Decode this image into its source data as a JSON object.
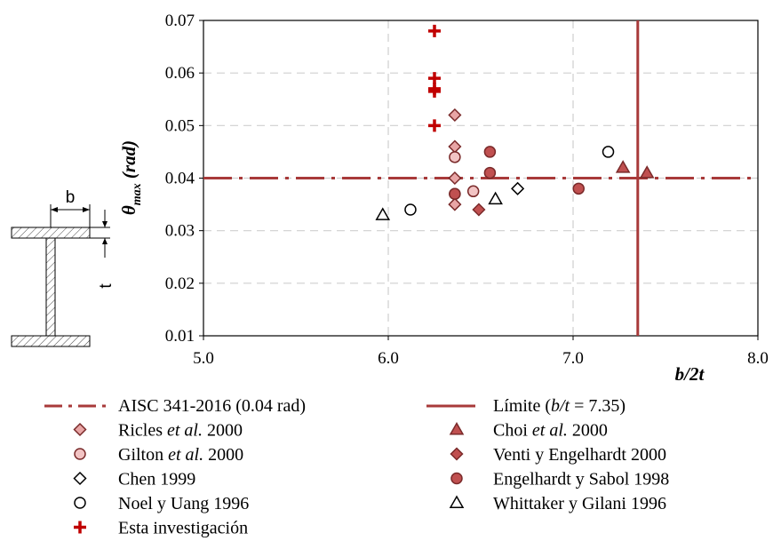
{
  "chart_data": {
    "type": "scatter",
    "xlabel": "b/2t",
    "ylabel_main": "θ",
    "ylabel_sub": "max",
    "ylabel_unit": " (rad)",
    "xlim": [
      5.0,
      8.0
    ],
    "ylim": [
      0.01,
      0.07
    ],
    "x_ticks": [
      "5.0",
      "6.0",
      "7.0",
      "8.0"
    ],
    "y_ticks": [
      "0.01",
      "0.02",
      "0.03",
      "0.04",
      "0.05",
      "0.06",
      "0.07"
    ],
    "x_tick_values": [
      5.0,
      6.0,
      7.0,
      8.0
    ],
    "y_tick_values": [
      0.01,
      0.02,
      0.03,
      0.04,
      0.05,
      0.06,
      0.07
    ],
    "grid": true,
    "reference_lines": [
      {
        "name": "AISC 341-2016 (0.04 rad)",
        "orientation": "horizontal",
        "value": 0.04,
        "style": "dash-dot",
        "color": "#a83a3a"
      },
      {
        "name": "Límite (b/t = 7.35)",
        "orientation": "vertical",
        "value": 7.35,
        "style": "solid",
        "color": "#a83a3a"
      }
    ],
    "series": [
      {
        "name": "Ricles et al. 2000",
        "marker": "diamond",
        "fill": "#e8a5a5",
        "stroke": "#7a2a2a",
        "points": [
          [
            6.36,
            0.052
          ],
          [
            6.36,
            0.046
          ],
          [
            6.36,
            0.04
          ],
          [
            6.36,
            0.035
          ]
        ]
      },
      {
        "name": "Gilton et al. 2000",
        "marker": "circle",
        "fill": "#f2c4c4",
        "stroke": "#7a2a2a",
        "points": [
          [
            6.36,
            0.044
          ],
          [
            6.36,
            0.037
          ],
          [
            6.46,
            0.0375
          ]
        ]
      },
      {
        "name": "Chen 1999",
        "marker": "diamond",
        "fill": "#ffffff",
        "stroke": "#000000",
        "points": [
          [
            6.7,
            0.038
          ]
        ]
      },
      {
        "name": "Noel y Uang 1996",
        "marker": "circle",
        "fill": "#ffffff",
        "stroke": "#000000",
        "points": [
          [
            6.12,
            0.034
          ],
          [
            7.19,
            0.045
          ]
        ]
      },
      {
        "name": "Esta investigación",
        "marker": "plus",
        "fill": "#c00000",
        "stroke": "#c00000",
        "points": [
          [
            6.25,
            0.068
          ],
          [
            6.25,
            0.059
          ],
          [
            6.25,
            0.057
          ],
          [
            6.25,
            0.0565
          ],
          [
            6.25,
            0.05
          ]
        ]
      },
      {
        "name": "Choi et al. 2000",
        "marker": "triangle",
        "fill": "#c05050",
        "stroke": "#7a2a2a",
        "points": [
          [
            7.27,
            0.042
          ],
          [
            7.4,
            0.041
          ]
        ]
      },
      {
        "name": "Venti y Engelhardt 2000",
        "marker": "diamond",
        "fill": "#c05050",
        "stroke": "#7a2a2a",
        "points": [
          [
            6.49,
            0.034
          ]
        ]
      },
      {
        "name": "Engelhardt y Sabol 1998",
        "marker": "circle",
        "fill": "#c05050",
        "stroke": "#7a2a2a",
        "points": [
          [
            6.55,
            0.045
          ],
          [
            6.55,
            0.041
          ],
          [
            6.36,
            0.037
          ],
          [
            7.03,
            0.038
          ]
        ]
      },
      {
        "name": "Whittaker y Gilani 1996",
        "marker": "triangle",
        "fill": "#ffffff",
        "stroke": "#000000",
        "points": [
          [
            5.97,
            0.033
          ],
          [
            6.58,
            0.036
          ]
        ]
      }
    ]
  },
  "legend": {
    "left": [
      {
        "key": "aisc",
        "label": "AISC 341-2016 (0.04 rad)",
        "marker": "dashdot",
        "fill": "#a83a3a",
        "stroke": "#a83a3a"
      },
      {
        "key": "ricles",
        "label_parts": [
          "Ricles ",
          "et al.",
          " 2000"
        ],
        "marker": "diamond",
        "fill": "#e8a5a5",
        "stroke": "#7a2a2a"
      },
      {
        "key": "gilton",
        "label_parts": [
          "Gilton ",
          "et al.",
          " 2000"
        ],
        "marker": "circle",
        "fill": "#f2c4c4",
        "stroke": "#7a2a2a"
      },
      {
        "key": "chen",
        "label": "Chen 1999",
        "marker": "diamond",
        "fill": "#ffffff",
        "stroke": "#000000"
      },
      {
        "key": "noel",
        "label": "Noel y Uang 1996",
        "marker": "circle",
        "fill": "#ffffff",
        "stroke": "#000000"
      },
      {
        "key": "esta",
        "label": "Esta investigación",
        "marker": "plus",
        "fill": "#c00000",
        "stroke": "#c00000"
      }
    ],
    "right": [
      {
        "key": "limite",
        "label_parts": [
          "Límite (",
          "b/t",
          " = 7.35)"
        ],
        "marker": "solidline",
        "fill": "#a83a3a",
        "stroke": "#a83a3a"
      },
      {
        "key": "choi",
        "label_parts": [
          "Choi ",
          "et al.",
          " 2000"
        ],
        "marker": "triangle",
        "fill": "#c05050",
        "stroke": "#7a2a2a"
      },
      {
        "key": "venti",
        "label": "Venti y Engelhardt 2000",
        "marker": "diamond",
        "fill": "#c05050",
        "stroke": "#7a2a2a"
      },
      {
        "key": "engelhardt",
        "label": "Engelhardt y Sabol 1998",
        "marker": "circle",
        "fill": "#c05050",
        "stroke": "#7a2a2a"
      },
      {
        "key": "whittaker",
        "label": "Whittaker y Gilani 1996",
        "marker": "triangle",
        "fill": "#ffffff",
        "stroke": "#000000"
      }
    ]
  },
  "section_diagram": {
    "label_b": "b",
    "label_t": "t"
  }
}
